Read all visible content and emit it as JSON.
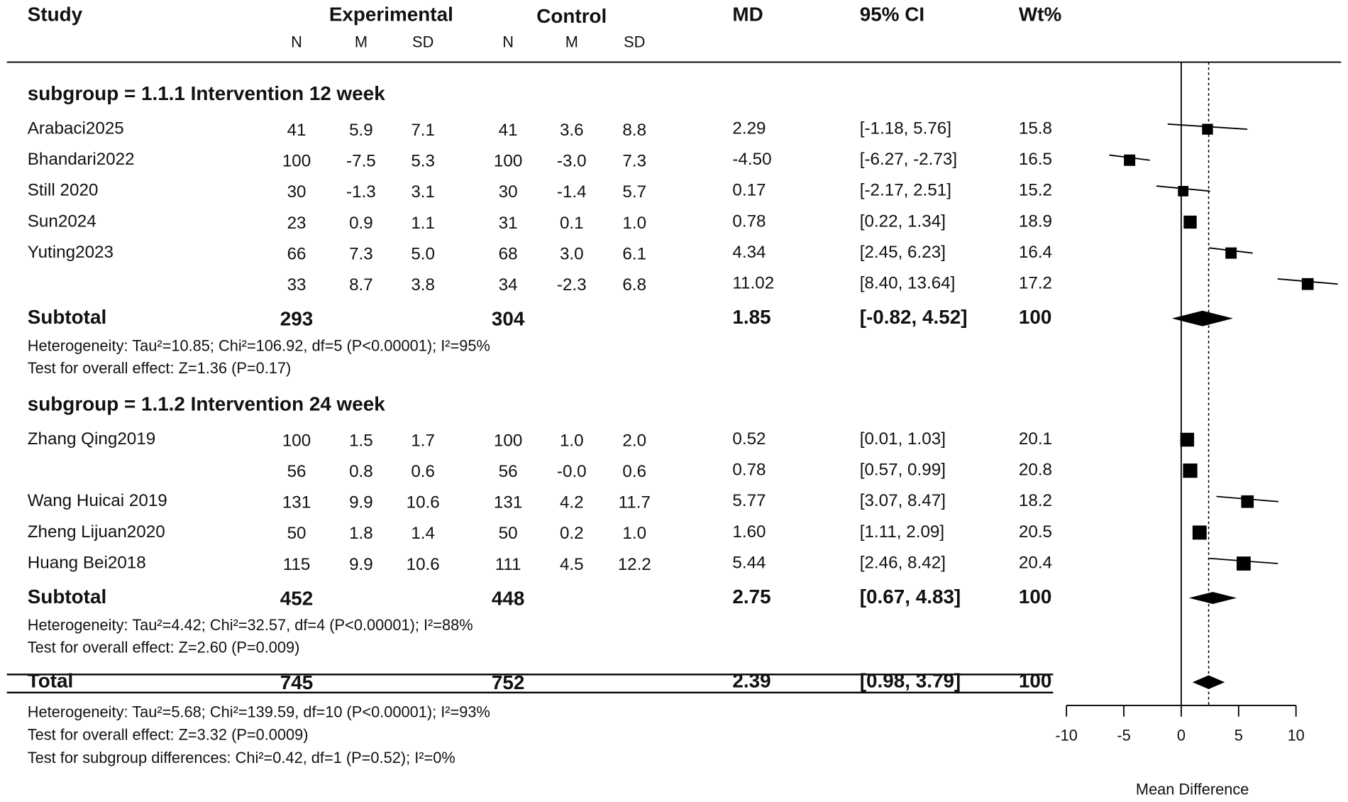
{
  "chart_data": {
    "type": "forest",
    "header": {
      "study": "Study",
      "experimental": "Experimental",
      "control": "Control",
      "md": "MD",
      "ci": "95% CI",
      "wt": "Wt%",
      "columns": [
        "N",
        "M",
        "SD",
        "N",
        "M",
        "SD"
      ]
    },
    "groups": [
      {
        "label": "subgroup = 1.1.1 Intervention 12 week",
        "studies": [
          {
            "name": "Arabaci2025",
            "exp": [
              "41",
              "5.9",
              "7.1"
            ],
            "ctl": [
              "41",
              "3.6",
              "8.8"
            ],
            "md": 2.29,
            "ci": [
              -1.18,
              5.76
            ],
            "ci_label": "[-1.18, 5.76]",
            "wt": 15.8
          },
          {
            "name": "Bhandari2022",
            "exp": [
              "100",
              "-7.5",
              "5.3"
            ],
            "ctl": [
              "100",
              "-3.0",
              "7.3"
            ],
            "md": {
              "value": -4.5,
              "label": "-4.50"
            },
            "ci": [
              -6.27,
              -2.73
            ],
            "ci_label": "[-6.27, -2.73]",
            "wt": 16.5
          },
          {
            "name": "Still 2020",
            "exp": [
              "30",
              "-1.3",
              "3.1"
            ],
            "ctl": [
              "30",
              "-1.4",
              "5.7"
            ],
            "md": 0.17,
            "ci": [
              -2.17,
              2.51
            ],
            "ci_label": "[-2.17, 2.51]",
            "wt": 15.2
          },
          {
            "name": "Sun2024",
            "exp": [
              "23",
              "0.9",
              "1.1"
            ],
            "ctl": [
              "31",
              "0.1",
              "1.0"
            ],
            "md": 0.78,
            "ci": [
              0.22,
              1.34
            ],
            "ci_label": "[0.22, 1.34]",
            "wt": 18.9
          },
          {
            "name": "Yuting2023",
            "exp": [
              "66",
              "7.3",
              "5.0"
            ],
            "ctl": [
              "68",
              "3.0",
              "6.1"
            ],
            "md": 4.34,
            "ci": [
              2.45,
              6.23
            ],
            "ci_label": "[2.45, 6.23]",
            "wt": 16.4
          },
          {
            "name": null,
            "exp": [
              "33",
              "8.7",
              "3.8"
            ],
            "ctl": [
              "34",
              "-2.3",
              "6.8"
            ],
            "md": 11.02,
            "ci": [
              8.4,
              13.64
            ],
            "ci_label": "[8.40, 13.64]",
            "wt": 17.2
          }
        ],
        "subtotal": {
          "label": "Subtotal",
          "n_exp": "293",
          "n_ctl": "304",
          "md": 1.85,
          "ci": [
            -0.82,
            4.52
          ],
          "ci_label": "[-0.82, 4.52]",
          "wt": 100
        },
        "notes": [
          "Heterogeneity: Tau²=10.85; Chi²=106.92, df=5 (P<0.00001); I²=95%",
          "Test for overall effect: Z=1.36 (P=0.17)"
        ]
      },
      {
        "label": "subgroup = 1.1.2 Intervention 24 week",
        "studies": [
          {
            "name": "Zhang Qing2019",
            "exp": [
              "100",
              "1.5",
              "1.7"
            ],
            "ctl": [
              "100",
              "1.0",
              "2.0"
            ],
            "md": 0.52,
            "ci": [
              0.01,
              1.03
            ],
            "ci_label": "[0.01, 1.03]",
            "wt": 20.1
          },
          {
            "name": null,
            "exp": [
              "56",
              "0.8",
              "0.6"
            ],
            "ctl": [
              "56",
              "-0.0",
              "0.6"
            ],
            "md": 0.78,
            "ci": [
              0.57,
              0.99
            ],
            "ci_label": "[0.57, 0.99]",
            "wt": 20.8
          },
          {
            "name": "Wang Huicai 2019",
            "exp": [
              "131",
              "9.9",
              "10.6"
            ],
            "ctl": [
              "131",
              "4.2",
              "11.7"
            ],
            "md": 5.77,
            "ci": [
              3.07,
              8.47
            ],
            "ci_label": "[3.07, 8.47]",
            "wt": 18.2
          },
          {
            "name": "Zheng Lijuan2020",
            "exp": [
              "50",
              "1.8",
              "1.4"
            ],
            "ctl": [
              "50",
              "0.2",
              "1.0"
            ],
            "md": {
              "value": 1.6,
              "label": "1.60"
            },
            "ci": [
              1.11,
              2.09
            ],
            "ci_label": "[1.11, 2.09]",
            "wt": 20.5
          },
          {
            "name": "Huang Bei2018",
            "exp": [
              "115",
              "9.9",
              "10.6"
            ],
            "ctl": [
              "111",
              "4.5",
              "12.2"
            ],
            "md": 5.44,
            "ci": [
              2.46,
              8.42
            ],
            "ci_label": "[2.46, 8.42]",
            "wt": 20.4
          }
        ],
        "subtotal": {
          "label": "Subtotal",
          "n_exp": "452",
          "n_ctl": "448",
          "md": 2.75,
          "ci": [
            0.67,
            4.83
          ],
          "ci_label": "[0.67, 4.83]",
          "wt": 100
        },
        "notes": [
          "Heterogeneity: Tau²=4.42; Chi²=32.57, df=4 (P<0.00001); I²=88%",
          "Test for overall effect: Z=2.60 (P=0.009)"
        ]
      }
    ],
    "total": {
      "label": "Total",
      "n_exp": "745",
      "n_ctl": "752",
      "md": 2.39,
      "ci": [
        0.98,
        3.79
      ],
      "ci_label": "[0.98, 3.79]",
      "wt": 100,
      "notes": [
        "Heterogeneity: Tau²=5.68; Chi²=139.59, df=10 (P<0.00001); I²=93%",
        "Test for overall effect: Z=3.32 (P=0.0009)",
        "Test for subgroup differences: Chi²=0.42, df=1 (P=0.52); I²=0%"
      ]
    },
    "xlim": [
      -10,
      10
    ],
    "xticks": [
      -10,
      -5,
      0,
      5,
      10
    ],
    "xlabel": "Mean Difference",
    "color": "#000000"
  }
}
